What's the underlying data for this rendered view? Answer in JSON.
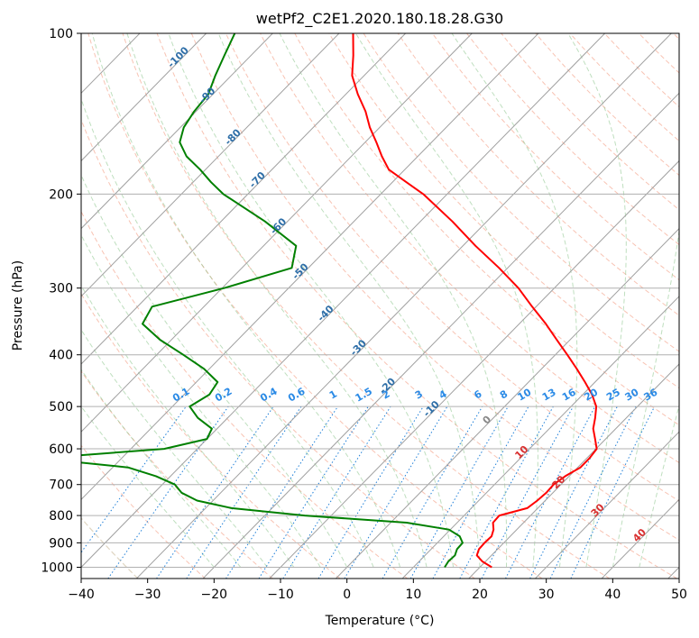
{
  "chart_data": {
    "type": "skew-t",
    "title": "wetPf2_C2E1.2020.180.18.28.G30",
    "xlabel": "Temperature (°C)",
    "ylabel": "Pressure (hPa)",
    "xlim": [
      -40,
      50
    ],
    "ylim": [
      1000,
      100
    ],
    "x_ticks": [
      "−40",
      "−30",
      "−20",
      "−10",
      "0",
      "10",
      "20",
      "30",
      "40",
      "50"
    ],
    "y_ticks": [
      "100",
      "200",
      "300",
      "400",
      "500",
      "600",
      "700",
      "800",
      "900",
      "1000"
    ],
    "y_tick_values": [
      100,
      200,
      300,
      400,
      500,
      600,
      700,
      800,
      900,
      1000
    ],
    "grid": true,
    "mixing_ratio_labels": [
      "0.1",
      "0.2",
      "0.4",
      "0.6",
      "1",
      "1.5",
      "2",
      "3",
      "4",
      "6",
      "8",
      "10",
      "13",
      "16",
      "20",
      "25",
      "30",
      "36"
    ],
    "mixing_ratio_values": [
      0.1,
      0.2,
      0.4,
      0.6,
      1,
      1.5,
      2,
      3,
      4,
      6,
      8,
      10,
      13,
      16,
      20,
      25,
      30,
      36
    ],
    "isotherm_labels_negative": [
      "-100",
      "-90",
      "-80",
      "-70",
      "-60",
      "-50",
      "-40",
      "-30",
      "-20",
      "-10"
    ],
    "isotherm_labels_positive": [
      "0",
      "10",
      "20",
      "30",
      "40"
    ],
    "series": [
      {
        "role": "temperature",
        "color": "#ff0000",
        "pressure": [
          1000,
          975,
          950,
          925,
          900,
          875,
          850,
          825,
          800,
          775,
          750,
          725,
          700,
          675,
          650,
          625,
          600,
          575,
          550,
          525,
          500,
          475,
          450,
          425,
          400,
          375,
          350,
          325,
          300,
          275,
          250,
          225,
          200,
          190,
          180,
          170,
          160,
          150,
          140,
          130,
          120,
          110,
          100
        ],
        "temp": [
          21.8,
          19.5,
          17.8,
          17.2,
          17.1,
          17.2,
          16.5,
          15.4,
          15.3,
          18.4,
          18.8,
          19.0,
          18.9,
          19.4,
          20.4,
          20.4,
          20.1,
          18.4,
          16.6,
          15.3,
          13.8,
          11.4,
          8.5,
          5.3,
          1.8,
          -2.0,
          -6.0,
          -10.6,
          -15.4,
          -21.3,
          -28.1,
          -35.2,
          -43.6,
          -47.9,
          -52.4,
          -55.4,
          -58.3,
          -61.5,
          -64.5,
          -68.2,
          -71.8,
          -74.6,
          -77.9
        ]
      },
      {
        "role": "dewpoint",
        "color": "#008000",
        "pressure": [
          1000,
          975,
          950,
          925,
          900,
          875,
          850,
          825,
          800,
          775,
          750,
          725,
          700,
          675,
          650,
          625,
          600,
          575,
          550,
          525,
          500,
          475,
          450,
          425,
          400,
          375,
          350,
          325,
          300,
          275,
          250,
          225,
          200,
          190,
          180,
          170,
          160,
          150,
          140,
          130,
          120,
          110,
          100
        ],
        "dewpoint": [
          14.7,
          14.4,
          14.5,
          13.9,
          13.8,
          12.4,
          9.8,
          2.4,
          -14.0,
          -26.1,
          -32.4,
          -35.9,
          -38.1,
          -42.2,
          -47.7,
          -62.3,
          -45.0,
          -40.0,
          -40.8,
          -44.5,
          -47.4,
          -46.2,
          -46.8,
          -50.8,
          -56.0,
          -61.7,
          -66.7,
          -67.8,
          -59.7,
          -52.5,
          -55.1,
          -63.4,
          -73.7,
          -77.3,
          -80.8,
          -84.8,
          -87.9,
          -89.5,
          -90.3,
          -90.7,
          -92.4,
          -94.0,
          -95.7
        ]
      }
    ]
  }
}
